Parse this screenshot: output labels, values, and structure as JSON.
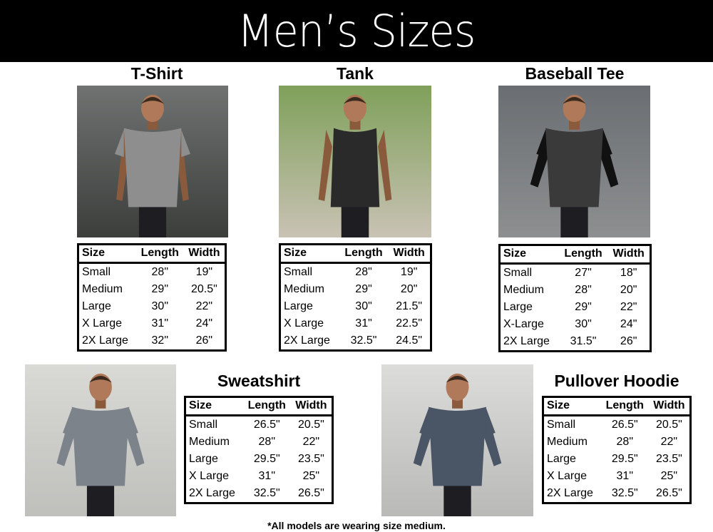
{
  "header": {
    "title": "Men’s Sizes"
  },
  "columns": [
    "Size",
    "Length",
    "Width"
  ],
  "products": {
    "tshirt": {
      "title": "T-Shirt",
      "shirt_color": "#8e8e8e",
      "rows": [
        [
          "Small",
          "28\"",
          "19\""
        ],
        [
          "Medium",
          "29\"",
          "20.5\""
        ],
        [
          "Large",
          "30\"",
          "22\""
        ],
        [
          "X Large",
          "31\"",
          "24\""
        ],
        [
          "2X Large",
          "32\"",
          "26\""
        ]
      ]
    },
    "tank": {
      "title": "Tank",
      "shirt_color": "#2a2a2a",
      "rows": [
        [
          "Small",
          "28\"",
          "19\""
        ],
        [
          "Medium",
          "29\"",
          "20\""
        ],
        [
          "Large",
          "30\"",
          "21.5\""
        ],
        [
          "X Large",
          "31\"",
          "22.5\""
        ],
        [
          "2X Large",
          "32.5\"",
          "24.5\""
        ]
      ]
    },
    "baseball": {
      "title": "Baseball Tee",
      "shirt_color": "#3a3a3a",
      "rows": [
        [
          "Small",
          "27\"",
          "18\""
        ],
        [
          "Medium",
          "28\"",
          "20\""
        ],
        [
          "Large",
          "29\"",
          "22\""
        ],
        [
          "X-Large",
          "30\"",
          "24\""
        ],
        [
          "2X Large",
          "31.5\"",
          "26\""
        ]
      ]
    },
    "sweatshirt": {
      "title": "Sweatshirt",
      "shirt_color": "#7d838a",
      "rows": [
        [
          "Small",
          "26.5\"",
          "20.5\""
        ],
        [
          "Medium",
          "28\"",
          "22\""
        ],
        [
          "Large",
          "29.5\"",
          "23.5\""
        ],
        [
          "X Large",
          "31\"",
          "25\""
        ],
        [
          "2X Large",
          "32.5\"",
          "26.5\""
        ]
      ]
    },
    "hoodie": {
      "title": "Pullover Hoodie",
      "shirt_color": "#4a5566",
      "rows": [
        [
          "Small",
          "26.5\"",
          "20.5\""
        ],
        [
          "Medium",
          "28\"",
          "22\""
        ],
        [
          "Large",
          "29.5\"",
          "23.5\""
        ],
        [
          "X Large",
          "31\"",
          "25\""
        ],
        [
          "2X Large",
          "32.5\"",
          "26.5\""
        ]
      ]
    }
  },
  "footnote": "*All models are wearing size medium."
}
